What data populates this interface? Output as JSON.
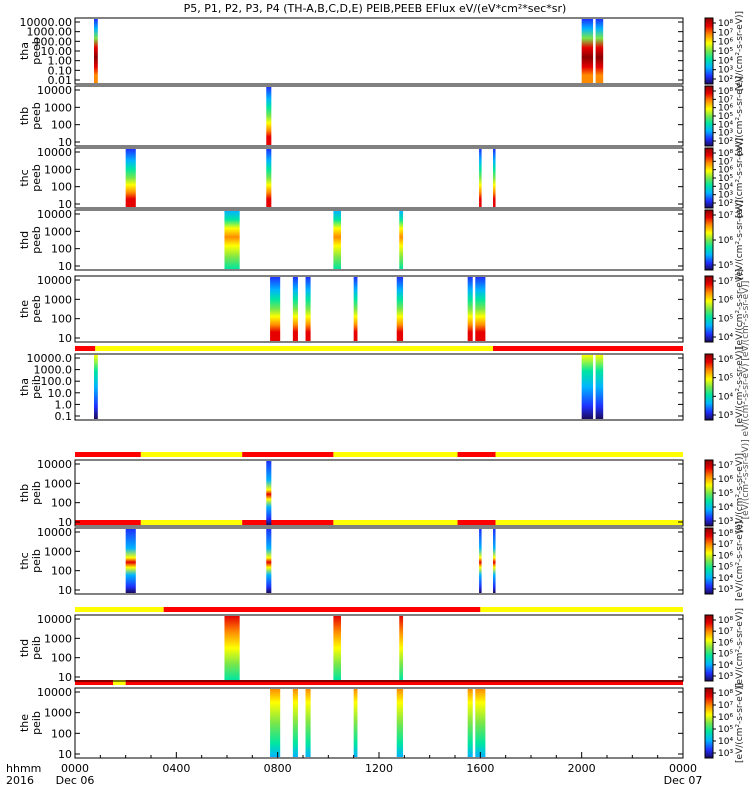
{
  "title": "P5, P1, P2, P3, P4 (TH-A,B,C,D,E) PEIB,PEEB EFlux eV/(eV*cm²*sec*sr)",
  "colorbar_text": "[eV/(cm²-s-sr-eV)]",
  "colorbar_overlap_text": "[eV/(cm²-s-sr-eV)]  eV/(cm²-s-sr-eV)  [eV/(cm²-s-sr-eV)]",
  "x_axis": {
    "left_caption": [
      "hhmm",
      "2016"
    ],
    "ticks": [
      "0000",
      "0400",
      "0800",
      "1200",
      "1600",
      "2000",
      "0000"
    ],
    "sub_ticks": [
      "Dec 06",
      "",
      "",
      "",
      "",
      "",
      "Dec 07"
    ]
  },
  "colors": {
    "status_yellow": "#ffff00",
    "status_red": "#ff0000",
    "colormap": [
      "#1a0a5c",
      "#1e30ff",
      "#00b4ff",
      "#00e6a0",
      "#7ae64a",
      "#ffff00",
      "#ff8c00",
      "#e60000",
      "#8c0000"
    ]
  },
  "chart_data": {
    "type": "heatmap",
    "x_range_hours": [
      0,
      24
    ],
    "status_bars": [
      [
        {
          "from": 0,
          "to": 0.8,
          "color": "red"
        },
        {
          "from": 0.8,
          "to": 16.5,
          "color": "yellow"
        },
        {
          "from": 16.5,
          "to": 24,
          "color": "red"
        }
      ],
      [
        {
          "from": 0,
          "to": 2.6,
          "color": "red"
        },
        {
          "from": 2.6,
          "to": 6.6,
          "color": "yellow"
        },
        {
          "from": 6.6,
          "to": 10.2,
          "color": "red"
        },
        {
          "from": 10.2,
          "to": 15.1,
          "color": "yellow"
        },
        {
          "from": 15.1,
          "to": 16.6,
          "color": "red"
        },
        {
          "from": 16.6,
          "to": 24,
          "color": "yellow"
        }
      ],
      [
        {
          "from": 0,
          "to": 2.6,
          "color": "red"
        },
        {
          "from": 2.6,
          "to": 6.6,
          "color": "yellow"
        },
        {
          "from": 6.6,
          "to": 10.2,
          "color": "red"
        },
        {
          "from": 10.2,
          "to": 15.1,
          "color": "yellow"
        },
        {
          "from": 15.1,
          "to": 16.6,
          "color": "red"
        },
        {
          "from": 16.6,
          "to": 24,
          "color": "yellow"
        }
      ],
      [
        {
          "from": 0,
          "to": 3.5,
          "color": "yellow"
        },
        {
          "from": 3.5,
          "to": 16.0,
          "color": "red"
        },
        {
          "from": 16.0,
          "to": 24,
          "color": "yellow"
        }
      ],
      [
        {
          "from": 0,
          "to": 1.5,
          "color": "red"
        },
        {
          "from": 1.5,
          "to": 2.0,
          "color": "yellow"
        },
        {
          "from": 2.0,
          "to": 24,
          "color": "red"
        }
      ]
    ],
    "panels": [
      {
        "label": [
          "tha",
          "peeb"
        ],
        "y_ticks": [
          "10000.00",
          "1000.00",
          "100.00",
          "10.00",
          "1.00",
          "0.10",
          "0.01"
        ],
        "cbar_ticks": [
          "10⁸",
          "10⁷",
          "10⁶",
          "10⁵",
          "10⁴",
          "10³",
          "10²"
        ],
        "style": "tha_e",
        "blocks": [
          [
            0.75,
            0.9
          ],
          [
            20.0,
            20.45
          ],
          [
            20.55,
            20.85
          ]
        ]
      },
      {
        "label": [
          "thb",
          "peeb"
        ],
        "y_ticks": [
          "10000",
          "1000",
          "100",
          "10"
        ],
        "cbar_ticks": [
          "10⁸",
          "10⁷",
          "10⁶",
          "10⁵",
          "10⁴",
          "10³",
          "10²"
        ],
        "style": "electron",
        "blocks": [
          [
            7.55,
            7.75
          ]
        ]
      },
      {
        "label": [
          "thc",
          "peeb"
        ],
        "y_ticks": [
          "10000",
          "1000",
          "100",
          "10"
        ],
        "cbar_ticks": [
          "10⁸",
          "10⁷",
          "10⁶",
          "10⁵",
          "10⁴",
          "10³",
          "10²"
        ],
        "style": "electron",
        "blocks": [
          [
            2.0,
            2.4
          ],
          [
            7.55,
            7.75
          ],
          [
            15.95,
            16.05
          ],
          [
            16.5,
            16.6
          ]
        ]
      },
      {
        "label": [
          "thd",
          "peeb"
        ],
        "y_ticks": [
          "10000",
          "1000",
          "100",
          "10"
        ],
        "cbar_ticks": [
          "10⁷",
          "10⁶",
          "10⁵"
        ],
        "style": "electron_thd",
        "blocks": [
          [
            5.9,
            6.5
          ],
          [
            10.2,
            10.5
          ],
          [
            12.8,
            12.95
          ]
        ]
      },
      {
        "label": [
          "the",
          "peeb"
        ],
        "y_ticks": [
          "10000",
          "1000",
          "100",
          "10"
        ],
        "cbar_ticks": [
          "10⁷",
          "10⁶",
          "10⁵",
          "10⁴"
        ],
        "style": "electron",
        "blocks": [
          [
            7.7,
            8.1
          ],
          [
            8.6,
            8.8
          ],
          [
            9.1,
            9.3
          ],
          [
            11.0,
            11.15
          ],
          [
            12.7,
            12.95
          ],
          [
            15.5,
            15.7
          ],
          [
            15.8,
            16.2
          ]
        ]
      },
      {
        "label": [
          "tha",
          "peib"
        ],
        "y_ticks": [
          "10000.0",
          "1000.0",
          "100.0",
          "10.0",
          "1.0",
          "0.1"
        ],
        "cbar_ticks": [
          "10⁶",
          "10⁵",
          "10⁴",
          "10³"
        ],
        "style": "ion_sparse",
        "blocks": [
          [
            0.75,
            0.9
          ],
          [
            20.0,
            20.45
          ],
          [
            20.55,
            20.85
          ]
        ]
      },
      {
        "label": [
          "thb",
          "peib"
        ],
        "y_ticks": [
          "10000",
          "1000",
          "100",
          "10"
        ],
        "cbar_ticks": [
          "10⁷",
          "10⁶",
          "10⁵",
          "10⁴",
          "10³"
        ],
        "style": "ion",
        "blocks": [
          [
            7.55,
            7.75
          ]
        ]
      },
      {
        "label": [
          "thc",
          "peib"
        ],
        "y_ticks": [
          "10000",
          "1000",
          "100",
          "10"
        ],
        "cbar_ticks": [
          "10⁸",
          "10⁷",
          "10⁶",
          "10⁵",
          "10⁴",
          "10³"
        ],
        "style": "ion",
        "blocks": [
          [
            2.0,
            2.4
          ],
          [
            7.55,
            7.75
          ],
          [
            15.95,
            16.05
          ],
          [
            16.5,
            16.6
          ]
        ]
      },
      {
        "label": [
          "thd",
          "peib"
        ],
        "y_ticks": [
          "10000",
          "1000",
          "100",
          "10"
        ],
        "cbar_ticks": [
          "10⁸",
          "10⁷",
          "10⁶",
          "10⁵",
          "10⁴",
          "10³"
        ],
        "style": "ion_thd",
        "blocks": [
          [
            5.9,
            6.5
          ],
          [
            10.2,
            10.5
          ],
          [
            12.8,
            12.95
          ]
        ]
      },
      {
        "label": [
          "the",
          "peib"
        ],
        "y_ticks": [
          "10000",
          "1000",
          "100",
          "10"
        ],
        "cbar_ticks": [
          "10⁸",
          "10⁷",
          "10⁶",
          "10⁵",
          "10⁴",
          "10³"
        ],
        "style": "ion_the",
        "blocks": [
          [
            7.7,
            8.1
          ],
          [
            8.6,
            8.8
          ],
          [
            9.1,
            9.3
          ],
          [
            11.0,
            11.15
          ],
          [
            12.7,
            12.95
          ],
          [
            15.5,
            15.7
          ],
          [
            15.8,
            16.2
          ]
        ]
      }
    ]
  }
}
